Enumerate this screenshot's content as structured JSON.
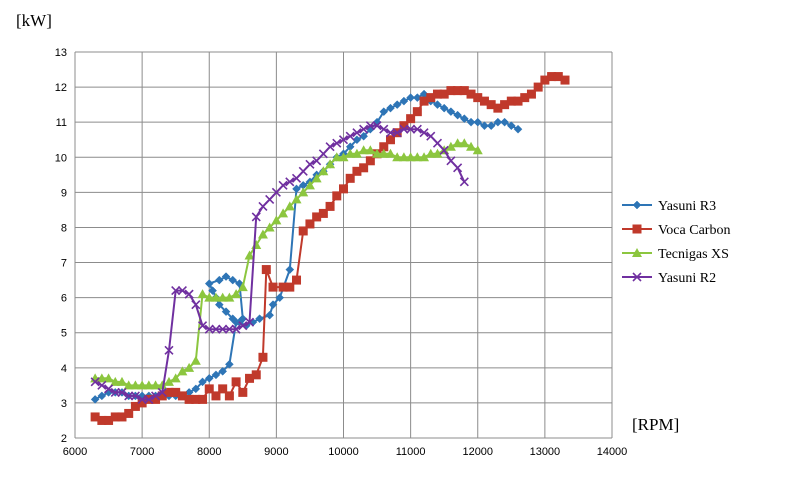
{
  "chart_data": {
    "type": "line",
    "ylabel": "[kW]",
    "xlabel": "[RPM]",
    "xlim": [
      6000,
      14000
    ],
    "ylim": [
      2,
      13
    ],
    "x_ticks": [
      "6000",
      "7000",
      "8000",
      "9000",
      "10000",
      "11000",
      "12000",
      "13000",
      "14000"
    ],
    "y_ticks": [
      "2",
      "3",
      "4",
      "5",
      "6",
      "7",
      "8",
      "9",
      "10",
      "11",
      "12",
      "13"
    ],
    "grid": true,
    "legend_position": "right",
    "series": [
      {
        "name": "Yasuni R3",
        "color": "#2e75b6",
        "marker": "diamond",
        "points": [
          [
            6300,
            3.1
          ],
          [
            6400,
            3.2
          ],
          [
            6500,
            3.3
          ],
          [
            6600,
            3.3
          ],
          [
            6700,
            3.3
          ],
          [
            6800,
            3.2
          ],
          [
            6900,
            3.2
          ],
          [
            7000,
            3.2
          ],
          [
            7100,
            3.2
          ],
          [
            7200,
            3.2
          ],
          [
            7300,
            3.2
          ],
          [
            7400,
            3.2
          ],
          [
            7500,
            3.2
          ],
          [
            7600,
            3.2
          ],
          [
            7700,
            3.3
          ],
          [
            7800,
            3.4
          ],
          [
            7900,
            3.6
          ],
          [
            8000,
            3.7
          ],
          [
            8100,
            3.8
          ],
          [
            8200,
            3.9
          ],
          [
            8300,
            4.1
          ],
          [
            8400,
            5.3
          ],
          [
            8500,
            5.4
          ],
          [
            8450,
            6.4
          ],
          [
            8350,
            6.5
          ],
          [
            8250,
            6.6
          ],
          [
            8150,
            6.5
          ],
          [
            8000,
            6.4
          ],
          [
            8050,
            6.2
          ],
          [
            8100,
            6.0
          ],
          [
            8150,
            5.8
          ],
          [
            8250,
            5.6
          ],
          [
            8350,
            5.4
          ],
          [
            8450,
            5.3
          ],
          [
            8550,
            5.2
          ],
          [
            8650,
            5.3
          ],
          [
            8750,
            5.4
          ],
          [
            8900,
            5.5
          ],
          [
            8950,
            5.8
          ],
          [
            9050,
            6.0
          ],
          [
            9200,
            6.8
          ],
          [
            9300,
            9.1
          ],
          [
            9400,
            9.2
          ],
          [
            9500,
            9.3
          ],
          [
            9600,
            9.5
          ],
          [
            9700,
            9.6
          ],
          [
            9800,
            9.8
          ],
          [
            9900,
            10.0
          ],
          [
            10000,
            10.1
          ],
          [
            10100,
            10.3
          ],
          [
            10200,
            10.5
          ],
          [
            10300,
            10.6
          ],
          [
            10400,
            10.8
          ],
          [
            10500,
            11.0
          ],
          [
            10600,
            11.3
          ],
          [
            10700,
            11.4
          ],
          [
            10800,
            11.5
          ],
          [
            10900,
            11.6
          ],
          [
            11000,
            11.7
          ],
          [
            11100,
            11.7
          ],
          [
            11200,
            11.8
          ],
          [
            11300,
            11.6
          ],
          [
            11400,
            11.5
          ],
          [
            11500,
            11.4
          ],
          [
            11600,
            11.3
          ],
          [
            11700,
            11.2
          ],
          [
            11800,
            11.1
          ],
          [
            11900,
            11.0
          ],
          [
            12000,
            11.0
          ],
          [
            12100,
            10.9
          ],
          [
            12200,
            10.9
          ],
          [
            12300,
            11.0
          ],
          [
            12400,
            11.0
          ],
          [
            12500,
            10.9
          ],
          [
            12600,
            10.8
          ]
        ]
      },
      {
        "name": "Voca Carbon",
        "color": "#c0392b",
        "marker": "square",
        "points": [
          [
            6300,
            2.6
          ],
          [
            6400,
            2.5
          ],
          [
            6500,
            2.5
          ],
          [
            6600,
            2.6
          ],
          [
            6700,
            2.6
          ],
          [
            6800,
            2.7
          ],
          [
            6900,
            2.9
          ],
          [
            7000,
            3.0
          ],
          [
            7100,
            3.1
          ],
          [
            7200,
            3.1
          ],
          [
            7300,
            3.2
          ],
          [
            7400,
            3.3
          ],
          [
            7500,
            3.3
          ],
          [
            7600,
            3.2
          ],
          [
            7700,
            3.1
          ],
          [
            7800,
            3.1
          ],
          [
            7900,
            3.1
          ],
          [
            8000,
            3.4
          ],
          [
            8100,
            3.2
          ],
          [
            8200,
            3.4
          ],
          [
            8300,
            3.2
          ],
          [
            8400,
            3.6
          ],
          [
            8500,
            3.3
          ],
          [
            8600,
            3.7
          ],
          [
            8700,
            3.8
          ],
          [
            8800,
            4.3
          ],
          [
            8850,
            6.8
          ],
          [
            8950,
            6.3
          ],
          [
            9100,
            6.3
          ],
          [
            9200,
            6.3
          ],
          [
            9300,
            6.5
          ],
          [
            9400,
            7.9
          ],
          [
            9500,
            8.1
          ],
          [
            9600,
            8.3
          ],
          [
            9700,
            8.4
          ],
          [
            9800,
            8.6
          ],
          [
            9900,
            8.9
          ],
          [
            10000,
            9.1
          ],
          [
            10100,
            9.4
          ],
          [
            10200,
            9.6
          ],
          [
            10300,
            9.7
          ],
          [
            10400,
            9.9
          ],
          [
            10500,
            10.1
          ],
          [
            10600,
            10.3
          ],
          [
            10700,
            10.5
          ],
          [
            10800,
            10.7
          ],
          [
            10900,
            10.9
          ],
          [
            11000,
            11.1
          ],
          [
            11100,
            11.3
          ],
          [
            11200,
            11.6
          ],
          [
            11300,
            11.7
          ],
          [
            11400,
            11.8
          ],
          [
            11500,
            11.8
          ],
          [
            11600,
            11.9
          ],
          [
            11700,
            11.9
          ],
          [
            11800,
            11.9
          ],
          [
            11900,
            11.8
          ],
          [
            12000,
            11.7
          ],
          [
            12100,
            11.6
          ],
          [
            12200,
            11.5
          ],
          [
            12300,
            11.4
          ],
          [
            12400,
            11.5
          ],
          [
            12500,
            11.6
          ],
          [
            12600,
            11.6
          ],
          [
            12700,
            11.7
          ],
          [
            12800,
            11.8
          ],
          [
            12900,
            12.0
          ],
          [
            13000,
            12.2
          ],
          [
            13100,
            12.3
          ],
          [
            13200,
            12.3
          ],
          [
            13300,
            12.2
          ]
        ]
      },
      {
        "name": "Tecnigas XS",
        "color": "#8cc63f",
        "marker": "triangle",
        "points": [
          [
            6300,
            3.7
          ],
          [
            6400,
            3.7
          ],
          [
            6500,
            3.7
          ],
          [
            6600,
            3.6
          ],
          [
            6700,
            3.6
          ],
          [
            6800,
            3.5
          ],
          [
            6900,
            3.5
          ],
          [
            7000,
            3.5
          ],
          [
            7100,
            3.5
          ],
          [
            7200,
            3.5
          ],
          [
            7300,
            3.5
          ],
          [
            7400,
            3.6
          ],
          [
            7500,
            3.7
          ],
          [
            7600,
            3.9
          ],
          [
            7700,
            4.0
          ],
          [
            7800,
            4.2
          ],
          [
            7900,
            6.1
          ],
          [
            8000,
            6.0
          ],
          [
            8100,
            6.0
          ],
          [
            8200,
            6.0
          ],
          [
            8300,
            6.0
          ],
          [
            8400,
            6.1
          ],
          [
            8500,
            6.3
          ],
          [
            8600,
            7.2
          ],
          [
            8700,
            7.5
          ],
          [
            8800,
            7.8
          ],
          [
            8900,
            8.0
          ],
          [
            9000,
            8.2
          ],
          [
            9100,
            8.4
          ],
          [
            9200,
            8.6
          ],
          [
            9300,
            8.8
          ],
          [
            9400,
            9.0
          ],
          [
            9500,
            9.2
          ],
          [
            9600,
            9.4
          ],
          [
            9700,
            9.6
          ],
          [
            9800,
            9.8
          ],
          [
            9900,
            10.0
          ],
          [
            10000,
            10.0
          ],
          [
            10100,
            10.1
          ],
          [
            10200,
            10.1
          ],
          [
            10300,
            10.2
          ],
          [
            10400,
            10.2
          ],
          [
            10500,
            10.1
          ],
          [
            10600,
            10.1
          ],
          [
            10700,
            10.1
          ],
          [
            10800,
            10.0
          ],
          [
            10900,
            10.0
          ],
          [
            11000,
            10.0
          ],
          [
            11100,
            10.0
          ],
          [
            11200,
            10.0
          ],
          [
            11300,
            10.1
          ],
          [
            11400,
            10.1
          ],
          [
            11500,
            10.2
          ],
          [
            11600,
            10.3
          ],
          [
            11700,
            10.4
          ],
          [
            11800,
            10.4
          ],
          [
            11900,
            10.3
          ],
          [
            12000,
            10.2
          ]
        ]
      },
      {
        "name": "Yasuni R2",
        "color": "#7030a0",
        "marker": "x",
        "points": [
          [
            6300,
            3.6
          ],
          [
            6400,
            3.5
          ],
          [
            6500,
            3.4
          ],
          [
            6600,
            3.3
          ],
          [
            6700,
            3.3
          ],
          [
            6800,
            3.2
          ],
          [
            6900,
            3.2
          ],
          [
            7000,
            3.1
          ],
          [
            7100,
            3.1
          ],
          [
            7200,
            3.2
          ],
          [
            7300,
            3.3
          ],
          [
            7400,
            4.5
          ],
          [
            7500,
            6.2
          ],
          [
            7600,
            6.2
          ],
          [
            7700,
            6.1
          ],
          [
            7800,
            5.8
          ],
          [
            7900,
            5.2
          ],
          [
            8000,
            5.1
          ],
          [
            8100,
            5.1
          ],
          [
            8200,
            5.1
          ],
          [
            8300,
            5.1
          ],
          [
            8400,
            5.1
          ],
          [
            8500,
            5.2
          ],
          [
            8600,
            5.3
          ],
          [
            8700,
            8.3
          ],
          [
            8800,
            8.6
          ],
          [
            8900,
            8.8
          ],
          [
            9000,
            9.0
          ],
          [
            9100,
            9.2
          ],
          [
            9200,
            9.3
          ],
          [
            9300,
            9.4
          ],
          [
            9400,
            9.6
          ],
          [
            9500,
            9.8
          ],
          [
            9600,
            9.9
          ],
          [
            9700,
            10.1
          ],
          [
            9800,
            10.3
          ],
          [
            9900,
            10.4
          ],
          [
            10000,
            10.5
          ],
          [
            10100,
            10.6
          ],
          [
            10200,
            10.7
          ],
          [
            10300,
            10.8
          ],
          [
            10400,
            10.9
          ],
          [
            10500,
            10.9
          ],
          [
            10600,
            10.8
          ],
          [
            10700,
            10.7
          ],
          [
            10800,
            10.7
          ],
          [
            10900,
            10.8
          ],
          [
            11000,
            10.8
          ],
          [
            11100,
            10.8
          ],
          [
            11200,
            10.7
          ],
          [
            11300,
            10.6
          ],
          [
            11400,
            10.4
          ],
          [
            11500,
            10.2
          ],
          [
            11600,
            9.9
          ],
          [
            11700,
            9.7
          ],
          [
            11800,
            9.3
          ]
        ]
      }
    ]
  }
}
